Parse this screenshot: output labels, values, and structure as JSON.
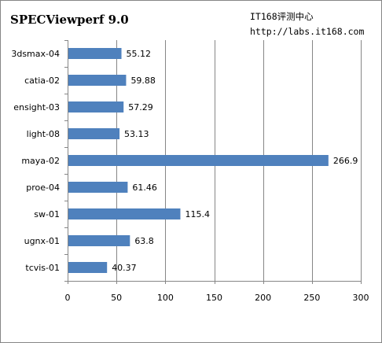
{
  "header": {
    "title": "SPECViewperf 9.0",
    "site": "IT168评测中心",
    "url": "http://labs.it168.com"
  },
  "chart_data": {
    "type": "bar",
    "orientation": "horizontal",
    "categories": [
      "3dsmax-04",
      "catia-02",
      "ensight-03",
      "light-08",
      "maya-02",
      "proe-04",
      "sw-01",
      "ugnx-01",
      "tcvis-01"
    ],
    "values": [
      55.12,
      59.88,
      57.29,
      53.13,
      266.9,
      61.46,
      115.4,
      63.8,
      40.37
    ],
    "value_labels": [
      "55.12",
      "59.88",
      "57.29",
      "53.13",
      "266.9",
      "61.46",
      "115.4",
      "63.8",
      "40.37"
    ],
    "xlim": [
      0,
      300
    ],
    "xticks": [
      0,
      50,
      100,
      150,
      200,
      250,
      300
    ],
    "grid": true,
    "legend": "none",
    "bar_color": "#4f81bd",
    "grid_color": "#868686"
  }
}
